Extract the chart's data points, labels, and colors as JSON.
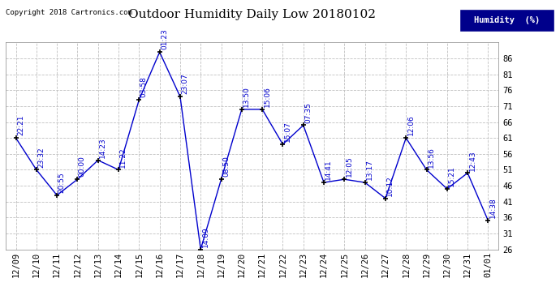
{
  "title": "Outdoor Humidity Daily Low 20180102",
  "copyright": "Copyright 2018 Cartronics.com",
  "legend_label": "Humidity  (%)",
  "legend_bg": "#00008B",
  "legend_text_color": "#FFFFFF",
  "x_labels": [
    "12/09",
    "12/10",
    "12/11",
    "12/12",
    "12/13",
    "12/14",
    "12/15",
    "12/16",
    "12/17",
    "12/18",
    "12/19",
    "12/20",
    "12/21",
    "12/22",
    "12/23",
    "12/24",
    "12/25",
    "12/26",
    "12/27",
    "12/28",
    "12/29",
    "12/30",
    "12/31",
    "01/01"
  ],
  "y_values": [
    61,
    51,
    43,
    48,
    54,
    51,
    73,
    88,
    74,
    26,
    48,
    70,
    70,
    59,
    65,
    47,
    48,
    47,
    42,
    61,
    51,
    45,
    50,
    35
  ],
  "time_labels": [
    "22:21",
    "23:32",
    "20:55",
    "00:00",
    "14:23",
    "11:22",
    "03:58",
    "01:23",
    "23:07",
    "14:09",
    "08:50",
    "13:50",
    "15:06",
    "15:07",
    "07:35",
    "14:41",
    "12:05",
    "13:17",
    "10:12",
    "12:06",
    "13:56",
    "15:21",
    "12:43",
    "14:38"
  ],
  "ylim_min": 26,
  "ylim_max": 91,
  "yticks": [
    26,
    31,
    36,
    41,
    46,
    51,
    56,
    61,
    66,
    71,
    76,
    81,
    86
  ],
  "line_color": "#0000CD",
  "marker_color": "#000000",
  "grid_color": "#C0C0C0",
  "bg_color": "#FFFFFF",
  "plot_bg_color": "#FFFFFF",
  "title_fontsize": 11,
  "label_fontsize": 6.5,
  "tick_fontsize": 7.5,
  "copyright_fontsize": 6.5
}
